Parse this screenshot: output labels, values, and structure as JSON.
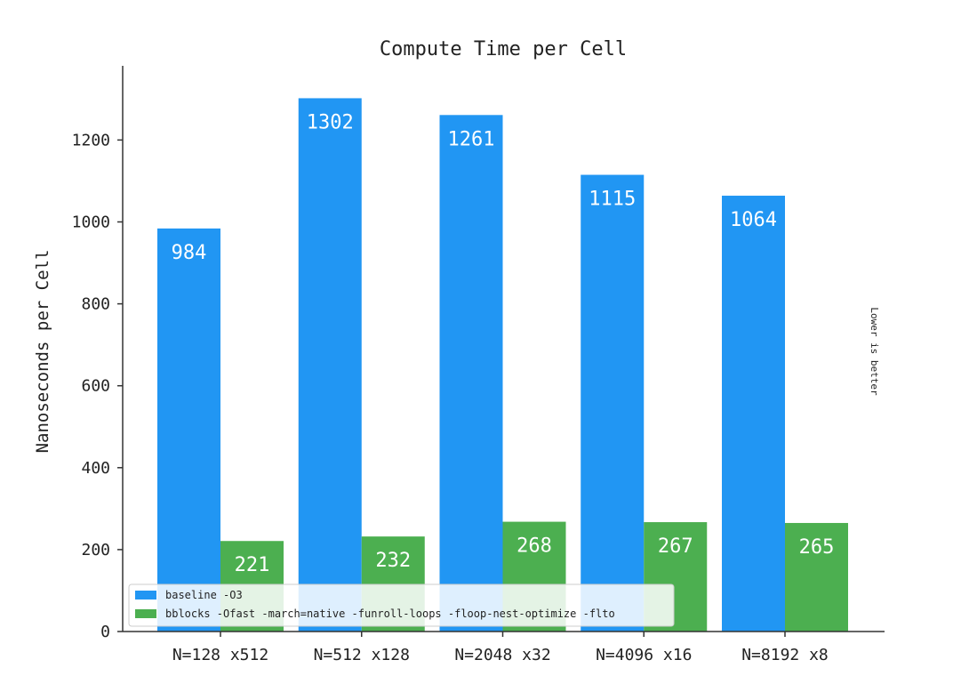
{
  "chart_data": {
    "type": "bar",
    "title": "Compute Time per Cell",
    "xlabel": "",
    "ylabel": "Nanoseconds per Cell",
    "categories": [
      "N=128 x512",
      "N=512 x128",
      "N=2048 x32",
      "N=4096 x16",
      "N=8192 x8"
    ],
    "series": [
      {
        "name": "baseline -O3",
        "values": [
          984,
          1302,
          1261,
          1115,
          1064
        ],
        "color": "#2196f3"
      },
      {
        "name": "bblocks -Ofast -march=native -funroll-loops -floop-nest-optimize -flto",
        "values": [
          221,
          232,
          268,
          267,
          265
        ],
        "color": "#4caf50"
      }
    ],
    "yticks": [
      0,
      200,
      400,
      600,
      800,
      1000,
      1200
    ],
    "ylim": [
      0,
      1370
    ],
    "grid": false,
    "legend": "bottom-left",
    "annotation": "Lower is better"
  }
}
